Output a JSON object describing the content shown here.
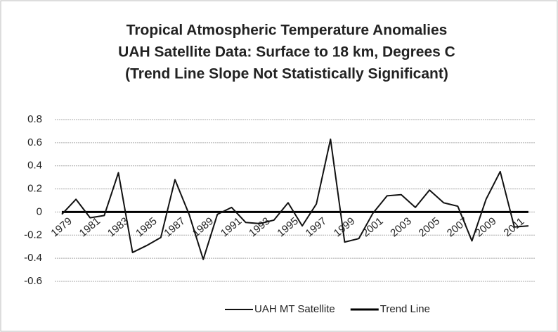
{
  "chart_data": {
    "type": "line",
    "title": [
      "Tropical Atmospheric Temperature Anomalies",
      "UAH Satellite Data: Surface to 18 km, Degrees C",
      "(Trend Line Slope Not Statistically Significant)"
    ],
    "categories": [
      "1979",
      null,
      "1981",
      null,
      "1983",
      null,
      "1985",
      null,
      "1987",
      null,
      "1989",
      null,
      "1991",
      null,
      "1993",
      null,
      "1995",
      null,
      "1997",
      null,
      "1999",
      null,
      "2001",
      null,
      "2003",
      null,
      "2005",
      null,
      "2007",
      null,
      "2009",
      null,
      "2011",
      null
    ],
    "series": [
      {
        "name": "UAH MT Satellite",
        "color": "#111111",
        "values": [
          -0.02,
          0.11,
          -0.05,
          -0.03,
          0.34,
          -0.35,
          -0.29,
          -0.22,
          0.28,
          -0.02,
          -0.41,
          -0.02,
          0.04,
          -0.09,
          -0.1,
          -0.07,
          0.08,
          -0.12,
          0.07,
          0.63,
          -0.26,
          -0.23,
          -0.01,
          0.14,
          0.15,
          0.04,
          0.19,
          0.08,
          0.05,
          -0.25,
          0.11,
          0.35,
          -0.13,
          -0.12
        ]
      },
      {
        "name": "Trend Line",
        "color": "#000000",
        "values": [
          0,
          0,
          0,
          0,
          0,
          0,
          0,
          0,
          0,
          0,
          0,
          0,
          0,
          0,
          0,
          0,
          0,
          0,
          0,
          0,
          0,
          0,
          0,
          0,
          0,
          0,
          0,
          0,
          0,
          0,
          0,
          0,
          0,
          0
        ]
      }
    ],
    "ylim": [
      -0.6,
      0.8
    ],
    "yticks": [
      {
        "value": 0.8,
        "label": "0.8"
      },
      {
        "value": 0.6,
        "label": "0.6"
      },
      {
        "value": 0.4,
        "label": "0.4"
      },
      {
        "value": 0.2,
        "label": "0.2"
      },
      0,
      {
        "value": -0.2,
        "label": "-0.2"
      },
      {
        "value": -0.4,
        "label": "-0.4"
      },
      {
        "value": -0.6,
        "label": "-0.6"
      }
    ],
    "grid": true,
    "legend": "bottom"
  }
}
